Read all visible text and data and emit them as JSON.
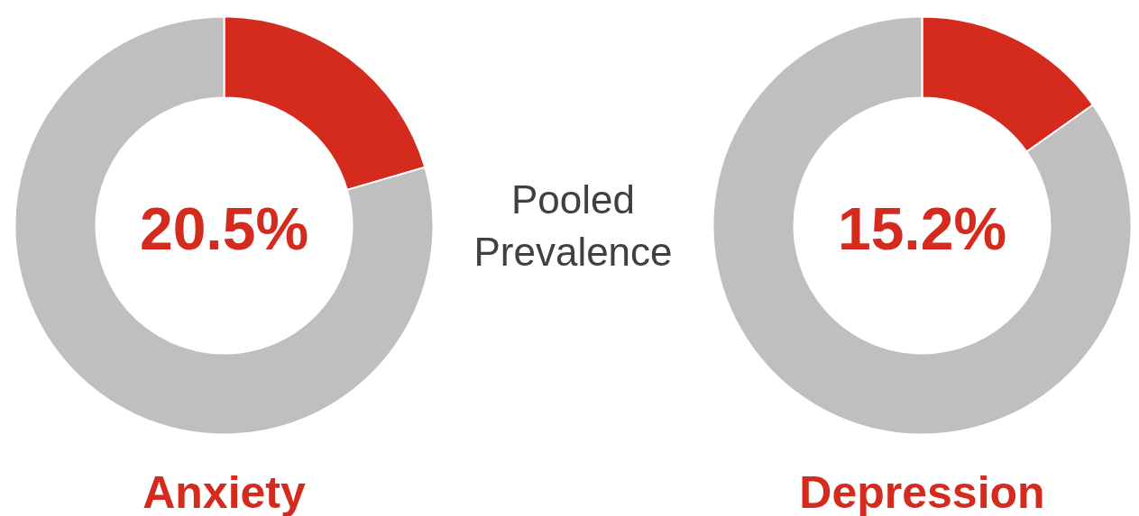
{
  "chart_data": [
    {
      "type": "donut",
      "title": "Anxiety",
      "categories": [
        null,
        null
      ],
      "values": [
        20.5,
        79.5
      ],
      "colors": [
        "#d52b1e",
        "#bfbfbf"
      ],
      "annotations": [
        "20.5%"
      ]
    },
    {
      "type": "other",
      "annotations": [
        "Pooled\nPrevalence"
      ]
    },
    {
      "type": "donut",
      "title": "Depression",
      "categories": [
        null,
        null
      ],
      "values": [
        15.2,
        84.8
      ],
      "colors": [
        "#d52b1e",
        "#bfbfbf"
      ],
      "annotations": [
        "15.2%"
      ]
    }
  ]
}
